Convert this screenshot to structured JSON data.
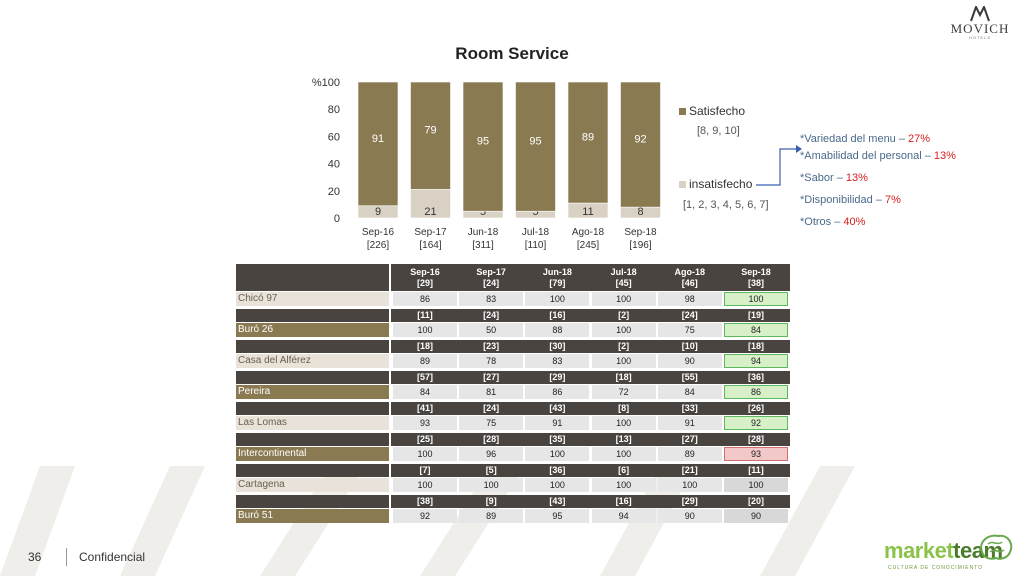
{
  "brand": {
    "logo_name": "MOVICH",
    "logo_sub": "HOTELS"
  },
  "chart_data": {
    "type": "bar",
    "stacked": true,
    "title": "Room Service",
    "y_unit_label": "%",
    "ylim": [
      0,
      100
    ],
    "yticks": [
      "0",
      "20",
      "40",
      "60",
      "80",
      "100"
    ],
    "categories": [
      "Sep-16",
      "Sep-17",
      "Jun-18",
      "Jul-18",
      "Ago-18",
      "Sep-18"
    ],
    "category_counts": [
      "[226]",
      "[164]",
      "[311]",
      "[110]",
      "[245]",
      "[196]"
    ],
    "series": [
      {
        "name": "insatisfecho",
        "sublabel": "[1, 2, 3, 4, 5, 6, 7]",
        "color": "#d9d2c4",
        "values": [
          9,
          21,
          5,
          5,
          11,
          8
        ]
      },
      {
        "name": "Satisfecho",
        "sublabel": "[8, 9, 10]",
        "color": "#8a7a52",
        "values": [
          91,
          79,
          95,
          95,
          89,
          92
        ]
      }
    ]
  },
  "notes": [
    {
      "label": "*Variedad del menu",
      "pct": "27%"
    },
    {
      "label": "*Amabilidad del personal",
      "pct": "13%"
    },
    {
      "label": "*Sabor",
      "pct": "13%"
    },
    {
      "label": "*Disponibilidad",
      "pct": "7%"
    },
    {
      "label": "*Otros",
      "pct": "40%"
    }
  ],
  "notes_separator": " – ",
  "table": {
    "headers": [
      {
        "period": "Sep-16",
        "n": "[29]"
      },
      {
        "period": "Sep-17",
        "n": "[24]"
      },
      {
        "period": "Jun-18",
        "n": "[79]"
      },
      {
        "period": "Jul-18",
        "n": "[45]"
      },
      {
        "period": "Ago-18",
        "n": "[46]"
      },
      {
        "period": "Sep-18",
        "n": "[38]"
      }
    ],
    "rows": [
      {
        "hotel": "Chicó 97",
        "counts": null,
        "values": [
          "86",
          "83",
          "100",
          "100",
          "98",
          "100"
        ],
        "style": "light",
        "last_status": "green"
      },
      {
        "hotel": "Buró 26",
        "counts": [
          "[11]",
          "[24]",
          "[16]",
          "[2]",
          "[24]",
          "[19]"
        ],
        "values": [
          "100",
          "50",
          "88",
          "100",
          "75",
          "84"
        ],
        "style": "dark",
        "last_status": "green"
      },
      {
        "hotel": "Casa del Alférez",
        "counts": [
          "[18]",
          "[23]",
          "[30]",
          "[2]",
          "[10]",
          "[18]"
        ],
        "values": [
          "89",
          "78",
          "83",
          "100",
          "90",
          "94"
        ],
        "style": "light",
        "last_status": "green"
      },
      {
        "hotel": "Pereira",
        "counts": [
          "[57]",
          "[27]",
          "[29]",
          "[18]",
          "[55]",
          "[36]"
        ],
        "values": [
          "84",
          "81",
          "86",
          "72",
          "84",
          "86"
        ],
        "style": "dark",
        "last_status": "green"
      },
      {
        "hotel": "Las Lomas",
        "counts": [
          "[41]",
          "[24]",
          "[43]",
          "[8]",
          "[33]",
          "[26]"
        ],
        "values": [
          "93",
          "75",
          "91",
          "100",
          "91",
          "92"
        ],
        "style": "light",
        "last_status": "green"
      },
      {
        "hotel": "Intercontinental",
        "counts": [
          "[25]",
          "[28]",
          "[35]",
          "[13]",
          "[27]",
          "[28]"
        ],
        "values": [
          "100",
          "96",
          "100",
          "100",
          "89",
          "93"
        ],
        "style": "dark",
        "last_status": "red"
      },
      {
        "hotel": "Cartagena",
        "counts": [
          "[7]",
          "[5]",
          "[36]",
          "[6]",
          "[21]",
          "[11]"
        ],
        "values": [
          "100",
          "100",
          "100",
          "100",
          "100",
          "100"
        ],
        "style": "light",
        "last_status": "gray"
      },
      {
        "hotel": "Buró 51",
        "counts": [
          "[38]",
          "[9]",
          "[43]",
          "[16]",
          "[29]",
          "[20]"
        ],
        "values": [
          "92",
          "89",
          "95",
          "94",
          "90",
          "90"
        ],
        "style": "dark",
        "last_status": "gray"
      }
    ]
  },
  "footer": {
    "page_number": "36",
    "label": "Confidencial"
  },
  "partner_logo": {
    "part1": "market",
    "part2": "team",
    "sub": "CULTURA DE CONOCIMIENTO"
  }
}
